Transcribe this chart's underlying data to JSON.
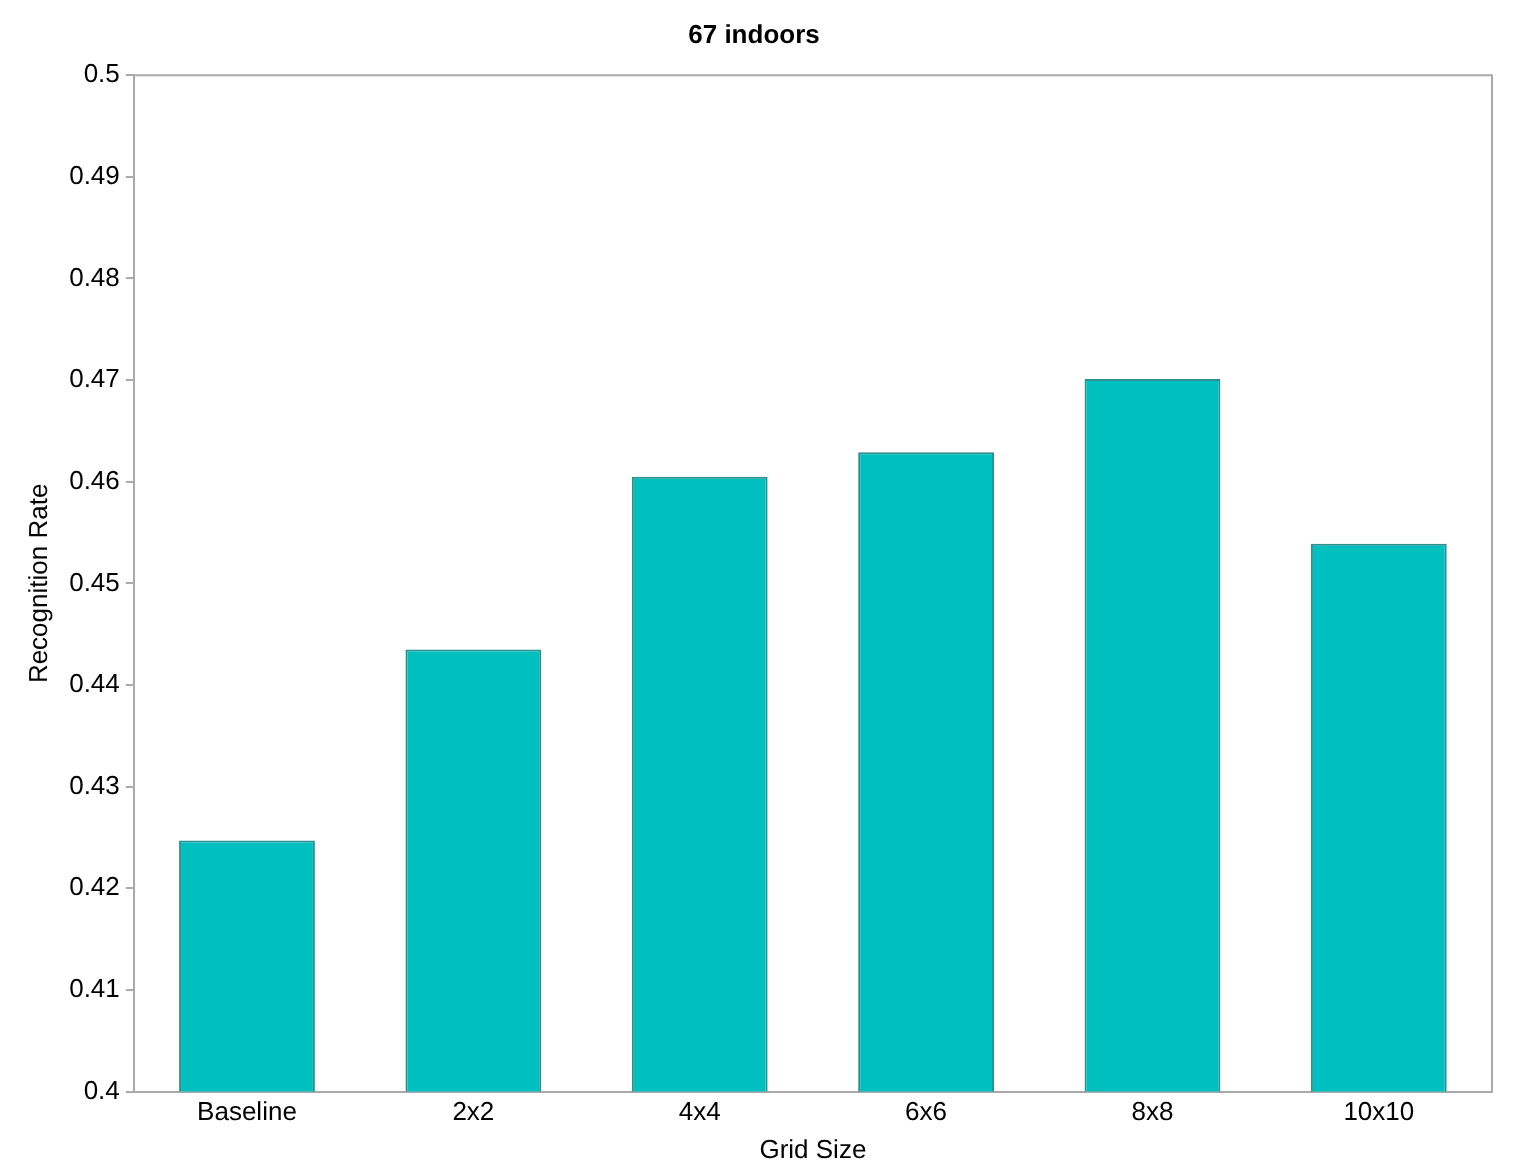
{
  "chart_data": {
    "type": "bar",
    "title": "67 indoors",
    "xlabel": "Grid Size",
    "ylabel": "Recognition Rate",
    "categories": [
      "Baseline",
      "2x2",
      "4x4",
      "6x6",
      "8x8",
      "10x10"
    ],
    "values": [
      0.4247,
      0.4435,
      0.4605,
      0.4629,
      0.4701,
      0.4539
    ],
    "color": "#00bfbf",
    "ylim": [
      0.4,
      0.5
    ],
    "yticks": [
      0.4,
      0.41,
      0.42,
      0.43,
      0.44,
      0.45,
      0.46,
      0.47,
      0.48,
      0.49,
      0.5
    ],
    "grid": false,
    "legend": false
  }
}
